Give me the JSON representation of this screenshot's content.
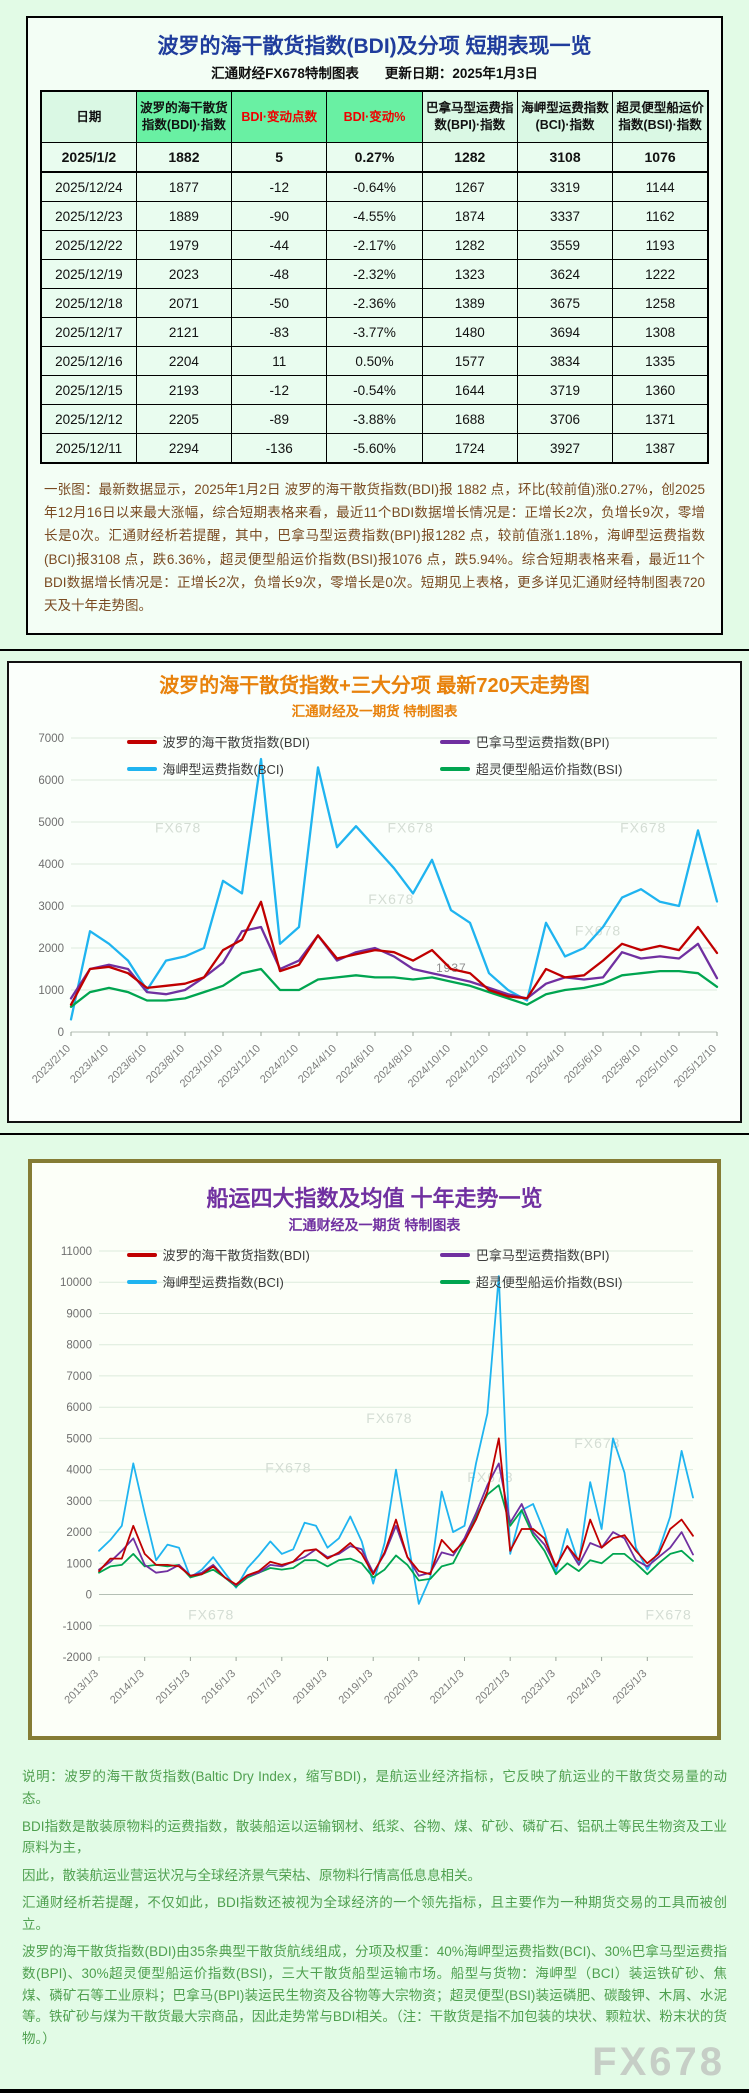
{
  "table_section": {
    "title": "波罗的海干散货指数(BDI)及分项  短期表现一览",
    "subtitle_left": "汇通财经FX678特制图表",
    "subtitle_right": "更新日期：2025年1月3日",
    "columns": [
      {
        "label": "日期",
        "highlight": false,
        "red": false
      },
      {
        "label": "波罗的海干散货指数(BDI)·指数",
        "highlight": true,
        "red": false
      },
      {
        "label": "BDI·变动点数",
        "highlight": true,
        "red": true
      },
      {
        "label": "BDI·变动%",
        "highlight": true,
        "red": true
      },
      {
        "label": "巴拿马型运费指数(BPI)·指数",
        "highlight": false,
        "red": false
      },
      {
        "label": "海岬型运费指数(BCI)·指数",
        "highlight": false,
        "red": false
      },
      {
        "label": "超灵便型船运价指数(BSI)·指数",
        "highlight": false,
        "red": false
      }
    ],
    "rows": [
      [
        "2025/1/2",
        "1882",
        "5",
        "0.27%",
        "1282",
        "3108",
        "1076"
      ],
      [
        "2025/12/24",
        "1877",
        "-12",
        "-0.64%",
        "1267",
        "3319",
        "1144"
      ],
      [
        "2025/12/23",
        "1889",
        "-90",
        "-4.55%",
        "1874",
        "3337",
        "1162"
      ],
      [
        "2025/12/22",
        "1979",
        "-44",
        "-2.17%",
        "1282",
        "3559",
        "1193"
      ],
      [
        "2025/12/19",
        "2023",
        "-48",
        "-2.32%",
        "1323",
        "3624",
        "1222"
      ],
      [
        "2025/12/18",
        "2071",
        "-50",
        "-2.36%",
        "1389",
        "3675",
        "1258"
      ],
      [
        "2025/12/17",
        "2121",
        "-83",
        "-3.77%",
        "1480",
        "3694",
        "1308"
      ],
      [
        "2025/12/16",
        "2204",
        "11",
        "0.50%",
        "1577",
        "3834",
        "1335"
      ],
      [
        "2025/12/15",
        "2193",
        "-12",
        "-0.54%",
        "1644",
        "3719",
        "1360"
      ],
      [
        "2025/12/12",
        "2205",
        "-89",
        "-3.88%",
        "1688",
        "3706",
        "1371"
      ],
      [
        "2025/12/11",
        "2294",
        "-136",
        "-5.60%",
        "1724",
        "3927",
        "1387"
      ]
    ],
    "note": "一张图：最新数据显示，2025年1月2日 波罗的海干散货指数(BDI)报 1882 点，环比(较前值)涨0.27%，创2025年12月16日以来最大涨幅，综合短期表格来看，最近11个BDI数据增长情况是：正增长2次，负增长9次，零增长是0次。汇通财经析若提醒，其中，巴拿马型运费指数(BPI)报1282 点，较前值涨1.18%，海岬型运费指数(BCI)报3108 点，跌6.36%，超灵便型船运价指数(BSI)报1076 点，跌5.94%。综合短期表格来看，最近11个BDI数据增长情况是：正增长2次，负增长9次，零增长是0次。短期见上表格，更多详见汇通财经特制图表720天及十年走势图。"
  },
  "chart_data": [
    {
      "type": "line",
      "title": "波罗的海干散货指数+三大分项  最新720天走势图",
      "subtitle": "汇通财经及一期货 特制图表",
      "ylim": [
        0,
        7000
      ],
      "ystep": 1000,
      "grid": true,
      "legend_position": "top-inside",
      "x_tick_every": 2,
      "x_ticks": [
        "2023/2/10",
        "2023/4/10",
        "2023/6/10",
        "2023/8/10",
        "2023/10/10",
        "2023/12/10",
        "2024/2/10",
        "2024/4/10",
        "2024/6/10",
        "2024/8/10",
        "2024/10/10",
        "2024/12/10",
        "2025/2/10",
        "2025/4/10",
        "2025/6/10",
        "2025/8/10",
        "2025/10/10",
        "2025/12/10"
      ],
      "x": [
        "2023/2",
        "2023/3",
        "2023/4",
        "2023/5",
        "2023/6",
        "2023/7",
        "2023/8",
        "2023/9",
        "2023/10",
        "2023/11",
        "2023/12",
        "2024/1",
        "2024/2",
        "2024/3",
        "2024/4",
        "2024/5",
        "2024/6",
        "2024/7",
        "2024/8",
        "2024/9",
        "2024/10",
        "2024/11",
        "2024/12",
        "2025/1",
        "2025/2",
        "2025/3",
        "2025/4",
        "2025/5",
        "2025/6",
        "2025/7",
        "2025/8",
        "2025/9",
        "2025/10",
        "2025/11",
        "2025/12"
      ],
      "series": [
        {
          "name": "波罗的海干散货指数(BDI)",
          "color": "#c00000",
          "values": [
            650,
            1500,
            1550,
            1400,
            1050,
            1100,
            1150,
            1300,
            1950,
            2200,
            3100,
            1450,
            1600,
            2300,
            1750,
            1850,
            1950,
            1900,
            1700,
            1950,
            1500,
            1400,
            1000,
            850,
            800,
            1500,
            1300,
            1350,
            1700,
            2100,
            1950,
            2050,
            1950,
            2500,
            1882
          ]
        },
        {
          "name": "巴拿马型运费指数(BPI)",
          "color": "#7030a0",
          "values": [
            800,
            1500,
            1600,
            1500,
            950,
            900,
            1000,
            1300,
            1650,
            2400,
            2500,
            1500,
            1700,
            2300,
            1700,
            1900,
            2000,
            1800,
            1500,
            1400,
            1300,
            1200,
            1050,
            900,
            800,
            1150,
            1300,
            1250,
            1300,
            1900,
            1750,
            1800,
            1750,
            2100,
            1282
          ]
        },
        {
          "name": "海岬型运费指数(BCI)",
          "color": "#1fb4f0",
          "values": [
            300,
            2400,
            2100,
            1700,
            1000,
            1700,
            1800,
            2000,
            3600,
            3300,
            6500,
            2100,
            2500,
            6300,
            4400,
            4900,
            4400,
            3900,
            3300,
            4100,
            2900,
            2600,
            1400,
            1000,
            750,
            2600,
            1800,
            2000,
            2500,
            3200,
            3400,
            3100,
            3000,
            4800,
            3108
          ]
        },
        {
          "name": "超灵便型船运价指数(BSI)",
          "color": "#00a550",
          "values": [
            600,
            950,
            1050,
            950,
            750,
            750,
            800,
            950,
            1100,
            1400,
            1500,
            1000,
            1000,
            1250,
            1300,
            1350,
            1300,
            1300,
            1250,
            1300,
            1200,
            1100,
            950,
            800,
            650,
            900,
            1000,
            1050,
            1150,
            1350,
            1400,
            1450,
            1450,
            1400,
            1076
          ]
        }
      ],
      "annotations": [
        {
          "text": "FX678",
          "xf": 0.13,
          "y": 4750,
          "color": "#d4ddd4",
          "size": 14
        },
        {
          "text": "FX678",
          "xf": 0.49,
          "y": 4750,
          "color": "#d4ddd4",
          "size": 14
        },
        {
          "text": "FX678",
          "xf": 0.85,
          "y": 4750,
          "color": "#d4ddd4",
          "size": 14
        },
        {
          "text": "FX678",
          "xf": 0.46,
          "y": 3050,
          "color": "#d4ddd4",
          "size": 14
        },
        {
          "text": "FX678",
          "xf": 0.78,
          "y": 2300,
          "color": "#d4ddd4",
          "size": 14
        },
        {
          "text": "1937",
          "xf": 0.565,
          "y": 1430,
          "color": "#8f8f8f",
          "size": 12
        }
      ]
    },
    {
      "type": "line",
      "title": "船运四大指数及均值 十年走势一览",
      "subtitle": "汇通财经及一期货 特制图表",
      "ylim": [
        -2000,
        11000
      ],
      "ystep": 1000,
      "grid": true,
      "legend_position": "top-inside",
      "x_tick_every": 4,
      "x_ticks": [
        "2013/1/3",
        "2014/1/3",
        "2015/1/3",
        "2016/1/3",
        "2017/1/3",
        "2018/1/3",
        "2019/1/3",
        "2020/1/3",
        "2021/1/3",
        "2022/1/3",
        "2023/1/3",
        "2024/1/3",
        "2025/1/3"
      ],
      "x": [
        "2013/1",
        "2013/4",
        "2013/7",
        "2013/10",
        "2014/1",
        "2014/4",
        "2014/7",
        "2014/10",
        "2015/1",
        "2015/4",
        "2015/7",
        "2015/10",
        "2016/1",
        "2016/4",
        "2016/7",
        "2016/10",
        "2017/1",
        "2017/4",
        "2017/7",
        "2017/10",
        "2018/1",
        "2018/4",
        "2018/7",
        "2018/10",
        "2019/1",
        "2019/4",
        "2019/7",
        "2019/10",
        "2020/1",
        "2020/4",
        "2020/7",
        "2020/10",
        "2021/1",
        "2021/4",
        "2021/7",
        "2021/10",
        "2022/1",
        "2022/4",
        "2022/7",
        "2022/10",
        "2023/1",
        "2023/4",
        "2023/7",
        "2023/10",
        "2024/1",
        "2024/4",
        "2024/7",
        "2024/10",
        "2025/1",
        "2025/4",
        "2025/7",
        "2025/10",
        "2025/12"
      ],
      "series": [
        {
          "name": "波罗的海干散货指数(BDI)",
          "color": "#c00000",
          "values": [
            750,
            1150,
            1150,
            2200,
            1300,
            950,
            950,
            900,
            600,
            650,
            900,
            550,
            320,
            620,
            750,
            1050,
            950,
            1050,
            1400,
            1450,
            1150,
            1350,
            1650,
            1300,
            650,
            1350,
            2400,
            1200,
            750,
            650,
            1750,
            1350,
            1700,
            2400,
            3300,
            5000,
            1400,
            2100,
            2100,
            1800,
            900,
            1550,
            1100,
            2400,
            1500,
            1800,
            1900,
            1400,
            1000,
            1300,
            2100,
            2400,
            1882
          ]
        },
        {
          "name": "巴拿马型运费指数(BPI)",
          "color": "#7030a0",
          "values": [
            800,
            1050,
            1400,
            1800,
            950,
            700,
            750,
            950,
            600,
            700,
            950,
            550,
            300,
            600,
            700,
            950,
            900,
            1050,
            1200,
            1450,
            1200,
            1300,
            1550,
            1450,
            700,
            1300,
            2200,
            1200,
            600,
            700,
            1350,
            1250,
            1800,
            2600,
            3500,
            4200,
            2300,
            2900,
            2000,
            1600,
            900,
            1550,
            950,
            1650,
            1500,
            2000,
            1800,
            1100,
            900,
            1200,
            1500,
            2000,
            1282
          ]
        },
        {
          "name": "海岬型运费指数(BCI)",
          "color": "#1fb4f0",
          "values": [
            1400,
            1750,
            2200,
            4200,
            2600,
            1100,
            1600,
            1500,
            550,
            800,
            1200,
            700,
            220,
            850,
            1250,
            1700,
            1300,
            1450,
            2300,
            2200,
            1500,
            1800,
            2500,
            1700,
            350,
            1650,
            4000,
            1800,
            -300,
            550,
            3300,
            2000,
            2200,
            4200,
            5800,
            10200,
            1300,
            2700,
            2900,
            2000,
            700,
            2100,
            1000,
            3600,
            2100,
            5000,
            3900,
            1500,
            800,
            1400,
            2500,
            4600,
            3108
          ]
        },
        {
          "name": "超灵便型船运价指数(BSI)",
          "color": "#00a550",
          "values": [
            700,
            900,
            950,
            1300,
            900,
            950,
            900,
            950,
            550,
            650,
            800,
            550,
            250,
            550,
            700,
            850,
            800,
            850,
            1100,
            1100,
            900,
            1100,
            1150,
            1000,
            550,
            800,
            1250,
            950,
            450,
            500,
            900,
            1000,
            1700,
            2500,
            3200,
            3500,
            2200,
            2700,
            1900,
            1400,
            650,
            1000,
            750,
            1100,
            1000,
            1300,
            1300,
            1000,
            650,
            1000,
            1300,
            1400,
            1076
          ]
        }
      ],
      "annotations": [
        {
          "text": "FX678",
          "xf": 0.45,
          "y": 5500,
          "color": "#d4ddd4",
          "size": 14
        },
        {
          "text": "FX678",
          "xf": 0.28,
          "y": 3900,
          "color": "#d4ddd4",
          "size": 14
        },
        {
          "text": "FX678",
          "xf": 0.62,
          "y": 3600,
          "color": "#d4ddd4",
          "size": 14
        },
        {
          "text": "FX678",
          "xf": 0.8,
          "y": 4700,
          "color": "#d4ddd4",
          "size": 14
        },
        {
          "text": "FX678",
          "xf": 0.15,
          "y": -800,
          "color": "#d4ddd4",
          "size": 14
        },
        {
          "text": "FX678",
          "xf": 0.92,
          "y": -800,
          "color": "#d4ddd4",
          "size": 14
        }
      ]
    }
  ],
  "footer": {
    "lines": [
      "说明：波罗的海干散货指数(Baltic Dry Index，缩写BDI)，是航运业经济指标，它反映了航运业的干散货交易量的动态。",
      "BDI指数是散装原物料的运费指数，散装船运以运输钢材、纸浆、谷物、煤、矿砂、磷矿石、铝矾土等民生物资及工业原料为主，",
      "因此，散装航运业营运状况与全球经济景气荣枯、原物料行情高低息息相关。",
      "汇通财经析若提醒，不仅如此，BDI指数还被视为全球经济的一个领先指标，且主要作为一种期货交易的工具而被创立。",
      "波罗的海干散货指数(BDI)由35条典型干散货航线组成，分项及权重：40%海岬型运费指数(BCI)、30%巴拿马型运费指数(BPI)、30%超灵便型船运价指数(BSI)，三大干散货船型运输市场。船型与货物：海岬型（BCI）装运铁矿砂、焦煤、磷矿石等工业原料；巴拿马(BPI)装运民生物资及谷物等大宗物资；超灵便型(BSI)装运磷肥、碳酸钾、木屑、水泥等。铁矿砂与煤为干散货最大宗商品，因此走势常与BDI相关。（注：干散货是指不加包装的块状、颗粒状、粉末状的货物。）"
    ],
    "watermark": "FX678"
  }
}
